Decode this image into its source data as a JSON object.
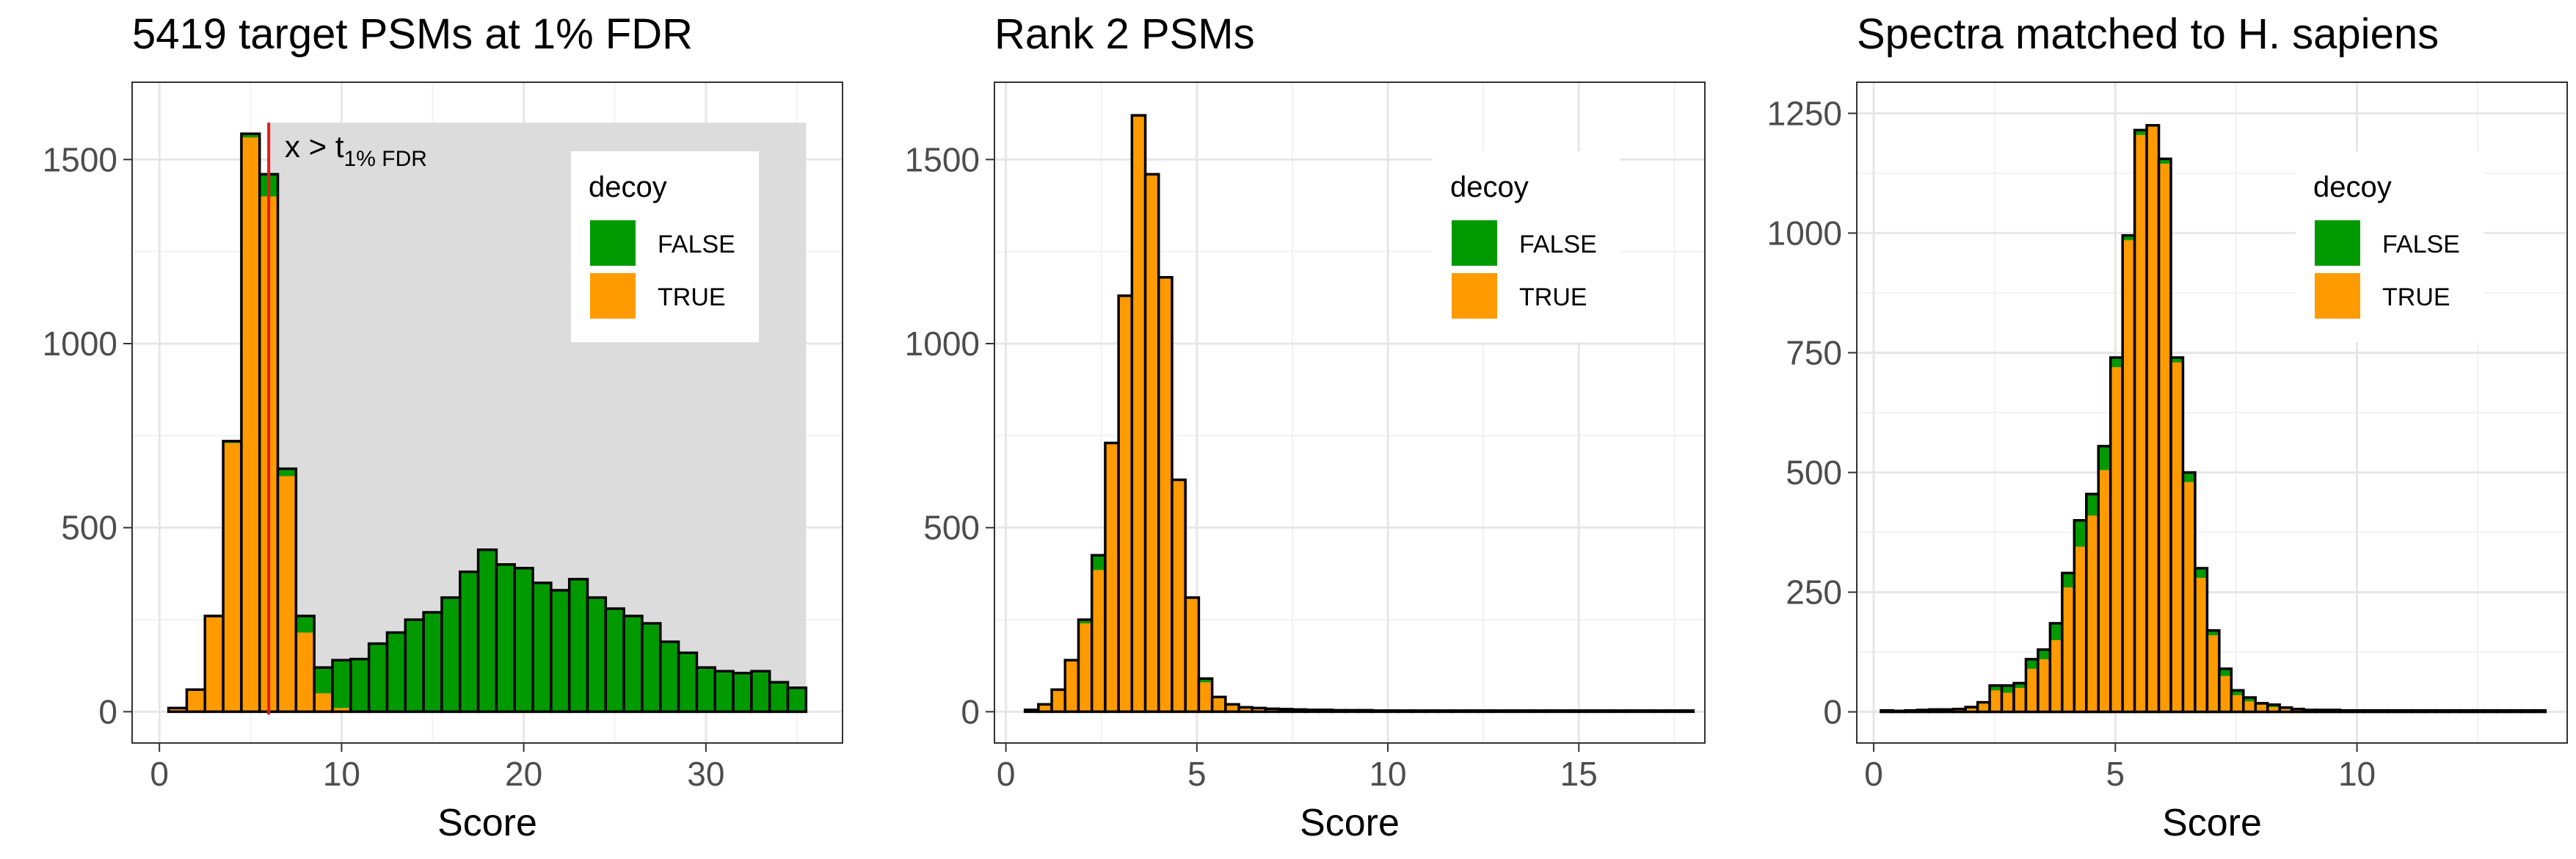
{
  "chart_data": [
    {
      "type": "bar",
      "stacked": true,
      "title": "5419 target PSMs at 1% FDR",
      "xlabel": "Score",
      "ylabel": "",
      "xlim": [
        -1.5,
        37.5
      ],
      "ylim": [
        -85,
        1710
      ],
      "x_ticks": [
        0,
        10,
        20,
        30
      ],
      "y_ticks": [
        0,
        500,
        1000,
        1500
      ],
      "bin_width": 1.0,
      "bins_start": [
        0.5,
        1.5,
        2.5,
        3.5,
        4.5,
        5.5,
        6.5,
        7.5,
        8.5,
        9.5,
        10.5,
        11.5,
        12.5,
        13.5,
        14.5,
        15.5,
        16.5,
        17.5,
        18.5,
        19.5,
        20.5,
        21.5,
        22.5,
        23.5,
        24.5,
        25.5,
        26.5,
        27.5,
        28.5,
        29.5,
        30.5,
        31.5,
        32.5,
        33.5,
        34.5
      ],
      "series": [
        {
          "name": "TRUE",
          "color": "#FF9A00",
          "values": [
            10,
            60,
            260,
            730,
            1560,
            1400,
            640,
            215,
            50,
            10,
            3,
            0,
            0,
            0,
            0,
            0,
            0,
            0,
            0,
            0,
            0,
            0,
            0,
            0,
            0,
            0,
            0,
            0,
            0,
            0,
            0,
            0,
            0,
            0,
            0
          ]
        },
        {
          "name": "FALSE",
          "color": "#009A00",
          "values": [
            0,
            0,
            0,
            5,
            10,
            60,
            20,
            45,
            70,
            130,
            140,
            185,
            215,
            250,
            270,
            310,
            380,
            440,
            400,
            390,
            350,
            330,
            360,
            310,
            280,
            260,
            240,
            190,
            160,
            120,
            110,
            105,
            110,
            80,
            65
          ]
        }
      ],
      "cutoff": {
        "x": 6.0,
        "label_main": "x > t",
        "label_sub": "1% FDR",
        "color": "#E41A1C"
      },
      "shaded_region": {
        "x_from": 6.0,
        "x_to": 35.5,
        "y_to": 1600,
        "color": "#DCDCDC"
      },
      "legend": {
        "title": "decoy",
        "entries": [
          "FALSE",
          "TRUE"
        ],
        "position": "top-right"
      },
      "grid": true
    },
    {
      "type": "bar",
      "stacked": true,
      "title": "Rank 2 PSMs",
      "xlabel": "Score",
      "ylabel": "",
      "xlim": [
        -0.3,
        18.3
      ],
      "ylim": [
        -85,
        1710
      ],
      "x_ticks": [
        0,
        5,
        10,
        15
      ],
      "y_ticks": [
        0,
        500,
        1000,
        1500
      ],
      "bin_width": 0.35,
      "bins_start": [
        0.5,
        0.85,
        1.2,
        1.55,
        1.9,
        2.25,
        2.6,
        2.95,
        3.3,
        3.65,
        4.0,
        4.35,
        4.7,
        5.05,
        5.4,
        5.75,
        6.1,
        6.45,
        6.8,
        7.15,
        7.5,
        7.85,
        8.2,
        8.55,
        8.9,
        9.25,
        9.6,
        9.95,
        10.3,
        10.65,
        11.0,
        11.35,
        11.7,
        12.05,
        12.4,
        12.75,
        13.1,
        13.45,
        13.8,
        14.15,
        14.5,
        14.85,
        15.2,
        15.55,
        15.9,
        16.25,
        16.6,
        16.95,
        17.3,
        17.65
      ],
      "series": [
        {
          "name": "TRUE",
          "color": "#FF9A00",
          "values": [
            5,
            20,
            60,
            140,
            240,
            385,
            730,
            1130,
            1620,
            1460,
            1180,
            630,
            310,
            80,
            40,
            20,
            12,
            10,
            8,
            7,
            6,
            5,
            5,
            4,
            4,
            4,
            3,
            3,
            3,
            3,
            3,
            3,
            3,
            3,
            3,
            3,
            3,
            3,
            3,
            3,
            3,
            3,
            3,
            3,
            3,
            3,
            3,
            3,
            3,
            3
          ]
        },
        {
          "name": "FALSE",
          "color": "#009A00",
          "values": [
            0,
            0,
            0,
            0,
            10,
            40,
            0,
            0,
            0,
            0,
            0,
            0,
            0,
            10,
            0,
            0,
            0,
            0,
            0,
            0,
            0,
            0,
            0,
            0,
            0,
            0,
            0,
            0,
            0,
            0,
            0,
            0,
            0,
            0,
            0,
            0,
            0,
            0,
            0,
            0,
            0,
            0,
            0,
            0,
            0,
            0,
            0,
            0,
            0,
            0
          ]
        }
      ],
      "legend": {
        "title": "decoy",
        "entries": [
          "FALSE",
          "TRUE"
        ],
        "position": "top-right"
      },
      "grid": true
    },
    {
      "type": "bar",
      "stacked": true,
      "title": "Spectra matched to H. sapiens",
      "xlabel": "Score",
      "ylabel": "",
      "xlim": [
        -0.35,
        14.35
      ],
      "ylim": [
        -65,
        1315
      ],
      "x_ticks": [
        0,
        5,
        10
      ],
      "y_ticks": [
        0,
        250,
        500,
        750,
        1000,
        1250
      ],
      "bin_width": 0.25,
      "bins_start": [
        0.15,
        0.4,
        0.65,
        0.9,
        1.15,
        1.4,
        1.65,
        1.9,
        2.15,
        2.4,
        2.65,
        2.9,
        3.15,
        3.4,
        3.65,
        3.9,
        4.15,
        4.4,
        4.65,
        4.9,
        5.15,
        5.4,
        5.65,
        5.9,
        6.15,
        6.4,
        6.65,
        6.9,
        7.15,
        7.4,
        7.65,
        7.9,
        8.15,
        8.4,
        8.65,
        8.9,
        9.15,
        9.4,
        9.65,
        9.9,
        10.15,
        10.4,
        10.65,
        10.9,
        11.15,
        11.4,
        11.65,
        11.9,
        12.15,
        12.4,
        12.65,
        12.9,
        13.15,
        13.4,
        13.65
      ],
      "series": [
        {
          "name": "TRUE",
          "color": "#FF9A00",
          "values": [
            3,
            2,
            3,
            4,
            5,
            5,
            6,
            10,
            20,
            45,
            40,
            50,
            90,
            110,
            150,
            260,
            345,
            410,
            505,
            720,
            985,
            1205,
            1225,
            1145,
            730,
            480,
            280,
            160,
            75,
            35,
            22,
            15,
            10,
            6,
            4,
            3,
            3,
            3,
            2,
            2,
            2,
            2,
            2,
            2,
            2,
            2,
            2,
            2,
            2,
            2,
            2,
            2,
            2,
            2,
            2
          ]
        },
        {
          "name": "FALSE",
          "color": "#009A00",
          "values": [
            0,
            0,
            0,
            0,
            0,
            0,
            0,
            0,
            0,
            10,
            15,
            10,
            20,
            20,
            35,
            30,
            55,
            45,
            50,
            20,
            10,
            10,
            0,
            10,
            10,
            20,
            20,
            10,
            15,
            10,
            8,
            3,
            5,
            3,
            2,
            1,
            1,
            1,
            1,
            1,
            1,
            1,
            1,
            1,
            1,
            1,
            1,
            1,
            1,
            1,
            1,
            1,
            1,
            1,
            1
          ]
        }
      ],
      "legend": {
        "title": "decoy",
        "entries": [
          "FALSE",
          "TRUE"
        ],
        "position": "top-right"
      },
      "grid": true
    }
  ]
}
